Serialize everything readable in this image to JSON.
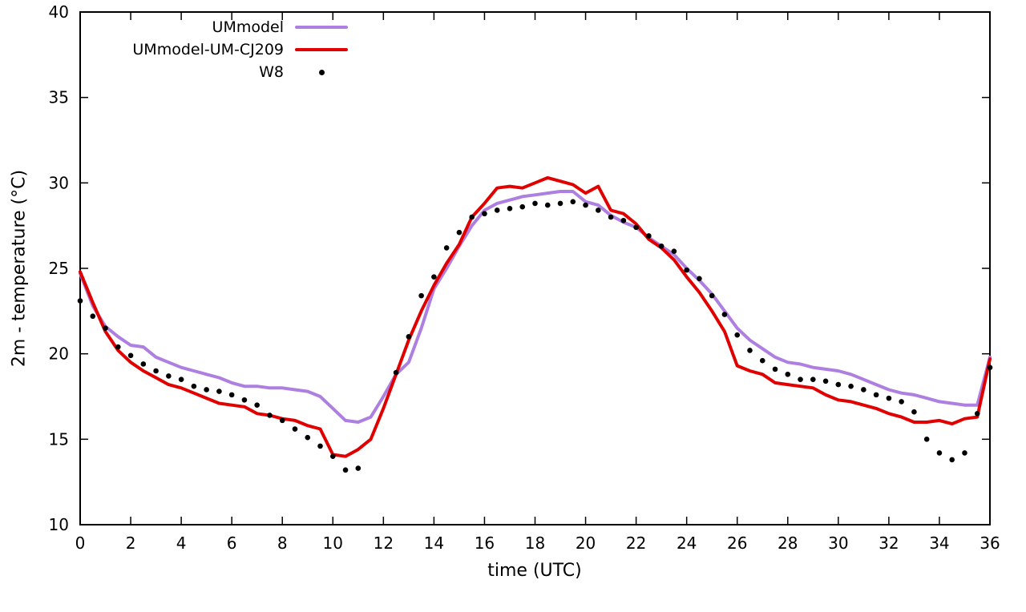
{
  "chart_data": {
    "type": "line",
    "title": "",
    "xlabel": "time (UTC)",
    "ylabel": "2m - temperature (°C)",
    "xlim": [
      0,
      36
    ],
    "ylim": [
      10,
      40
    ],
    "xticks": [
      0,
      2,
      4,
      6,
      8,
      10,
      12,
      14,
      16,
      18,
      20,
      22,
      24,
      26,
      28,
      30,
      32,
      34,
      36
    ],
    "yticks": [
      10,
      15,
      20,
      25,
      30,
      35,
      40
    ],
    "grid": false,
    "legend_position": "top-left-inside",
    "background": "#ffffff",
    "border_color": "#000000",
    "series": [
      {
        "name": "UMmodel",
        "type": "line",
        "color": "#ad7fe0",
        "width": 4,
        "x": [
          0,
          0.5,
          1,
          1.5,
          2,
          2.5,
          3,
          3.5,
          4,
          4.5,
          5,
          5.5,
          6,
          6.5,
          7,
          7.5,
          8,
          8.5,
          9,
          9.5,
          10,
          10.5,
          11,
          11.5,
          12,
          12.5,
          13,
          13.5,
          14,
          14.5,
          15,
          15.5,
          16,
          16.5,
          17,
          17.5,
          18,
          18.5,
          19,
          19.5,
          20,
          20.5,
          21,
          21.5,
          22,
          22.5,
          23,
          23.5,
          24,
          24.5,
          25,
          25.5,
          26,
          26.5,
          27,
          27.5,
          28,
          28.5,
          29,
          29.5,
          30,
          30.5,
          31,
          31.5,
          32,
          32.5,
          33,
          33.5,
          34,
          34.5,
          35,
          35.5,
          36
        ],
        "y": [
          24.7,
          22.8,
          21.6,
          21.0,
          20.5,
          20.4,
          19.8,
          19.5,
          19.2,
          19.0,
          18.8,
          18.6,
          18.3,
          18.1,
          18.1,
          18.0,
          18.0,
          17.9,
          17.8,
          17.5,
          16.8,
          16.1,
          16.0,
          16.3,
          17.5,
          18.8,
          19.5,
          21.5,
          23.8,
          25.0,
          26.3,
          27.5,
          28.4,
          28.8,
          29.0,
          29.2,
          29.3,
          29.4,
          29.5,
          29.5,
          28.9,
          28.7,
          28.1,
          27.7,
          27.4,
          26.8,
          26.3,
          25.8,
          25.0,
          24.3,
          23.5,
          22.5,
          21.5,
          20.8,
          20.3,
          19.8,
          19.5,
          19.4,
          19.2,
          19.1,
          19.0,
          18.8,
          18.5,
          18.2,
          17.9,
          17.7,
          17.6,
          17.4,
          17.2,
          17.1,
          17.0,
          17.0,
          19.8
        ]
      },
      {
        "name": "UMmodel-UM-CJ209",
        "type": "line",
        "color": "#e00000",
        "width": 4,
        "x": [
          0,
          0.5,
          1,
          1.5,
          2,
          2.5,
          3,
          3.5,
          4,
          4.5,
          5,
          5.5,
          6,
          6.5,
          7,
          7.5,
          8,
          8.5,
          9,
          9.5,
          10,
          10.5,
          11,
          11.5,
          12,
          12.5,
          13,
          13.5,
          14,
          14.5,
          15,
          15.5,
          16,
          16.5,
          17,
          17.5,
          18,
          18.5,
          19,
          19.5,
          20,
          20.5,
          21,
          21.5,
          22,
          22.5,
          23,
          23.5,
          24,
          24.5,
          25,
          25.5,
          26,
          26.5,
          27,
          27.5,
          28,
          28.5,
          29,
          29.5,
          30,
          30.5,
          31,
          31.5,
          32,
          32.5,
          33,
          33.5,
          34,
          34.5,
          35,
          35.5,
          36
        ],
        "y": [
          24.8,
          23.0,
          21.3,
          20.2,
          19.5,
          19.0,
          18.6,
          18.2,
          18.0,
          17.7,
          17.4,
          17.1,
          17.0,
          16.9,
          16.5,
          16.4,
          16.2,
          16.1,
          15.8,
          15.6,
          14.1,
          14.0,
          14.4,
          15.0,
          16.8,
          18.8,
          20.8,
          22.5,
          24.0,
          25.3,
          26.4,
          28.0,
          28.8,
          29.7,
          29.8,
          29.7,
          30.0,
          30.3,
          30.1,
          29.9,
          29.4,
          29.8,
          28.4,
          28.2,
          27.6,
          26.7,
          26.2,
          25.5,
          24.5,
          23.6,
          22.5,
          21.3,
          19.3,
          19.0,
          18.8,
          18.3,
          18.2,
          18.1,
          18.0,
          17.6,
          17.3,
          17.2,
          17.0,
          16.8,
          16.5,
          16.3,
          16.0,
          16.0,
          16.1,
          15.9,
          16.2,
          16.3,
          19.7
        ]
      },
      {
        "name": "W8",
        "type": "scatter",
        "color": "#000000",
        "marker": "filled-circle",
        "marker_radius": 3.3,
        "x": [
          0,
          0.5,
          1,
          1.5,
          2,
          2.5,
          3,
          3.5,
          4,
          4.5,
          5,
          5.5,
          6,
          6.5,
          7,
          7.5,
          8,
          8.5,
          9,
          9.5,
          10,
          10.5,
          11,
          12.5,
          13,
          13.5,
          14,
          14.5,
          15,
          15.5,
          16,
          16.5,
          17,
          17.5,
          18,
          18.5,
          19,
          19.5,
          20,
          20.5,
          21,
          21.5,
          22,
          22.5,
          23,
          23.5,
          24,
          24.5,
          25,
          25.5,
          26,
          26.5,
          27,
          27.5,
          28,
          28.5,
          29,
          29.5,
          30,
          30.5,
          31,
          31.5,
          32,
          32.5,
          33,
          33.5,
          34,
          34.5,
          35,
          35.5,
          36
        ],
        "y": [
          23.1,
          22.2,
          21.5,
          20.4,
          19.9,
          19.4,
          19.0,
          18.7,
          18.5,
          18.1,
          17.9,
          17.8,
          17.6,
          17.3,
          17.0,
          16.4,
          16.1,
          15.6,
          15.1,
          14.6,
          14.0,
          13.2,
          13.3,
          18.9,
          21.0,
          23.4,
          24.5,
          26.2,
          27.1,
          28.0,
          28.2,
          28.4,
          28.5,
          28.6,
          28.8,
          28.7,
          28.8,
          28.9,
          28.7,
          28.4,
          28.0,
          27.8,
          27.4,
          26.9,
          26.3,
          26.0,
          24.9,
          24.4,
          23.4,
          22.3,
          21.1,
          20.2,
          19.6,
          19.1,
          18.8,
          18.5,
          18.5,
          18.4,
          18.2,
          18.1,
          17.9,
          17.6,
          17.4,
          17.2,
          16.6,
          15.0,
          14.2,
          13.8,
          14.2,
          16.5,
          19.2
        ]
      }
    ]
  }
}
